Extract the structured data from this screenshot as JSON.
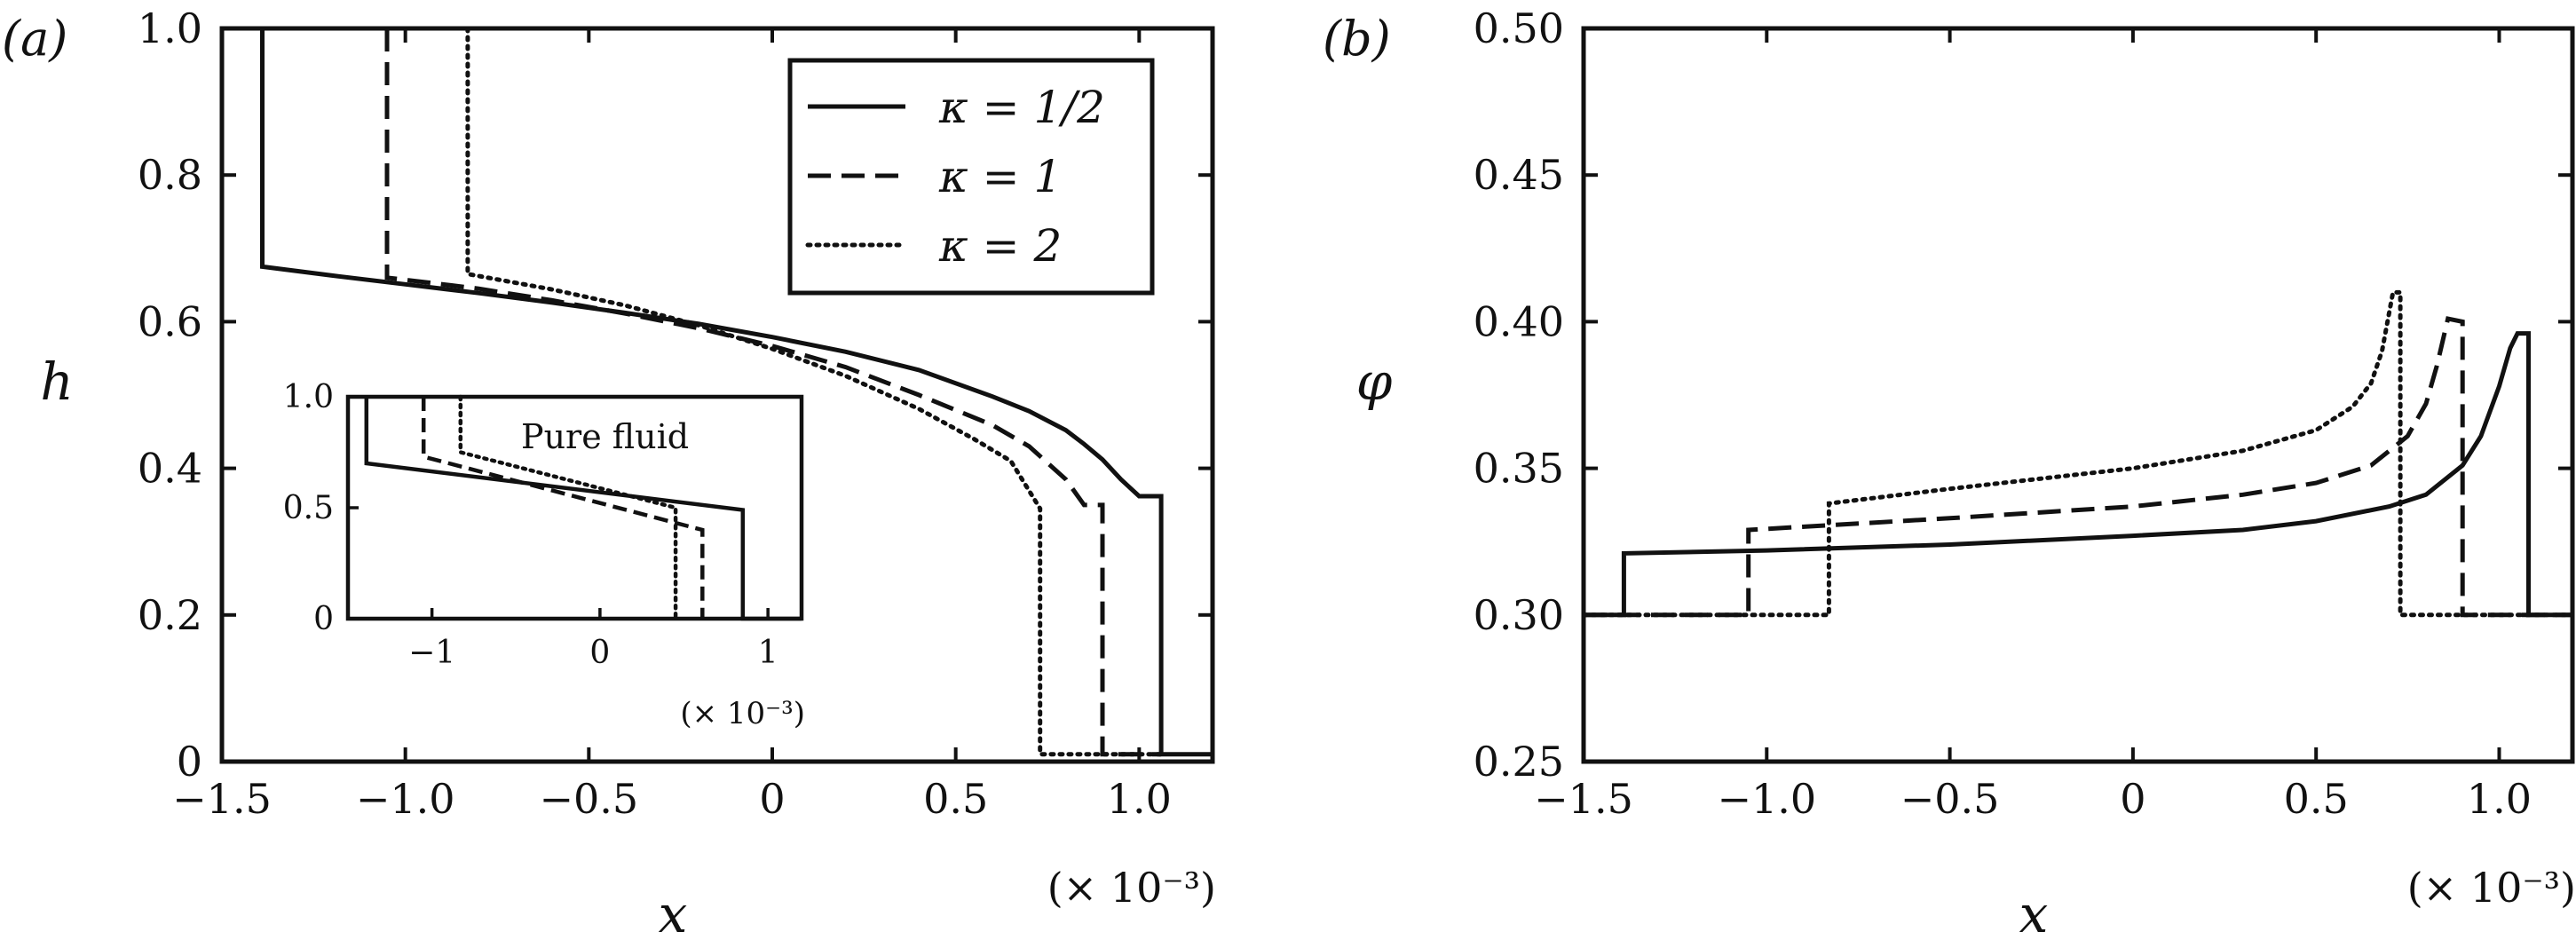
{
  "chart_data": [
    {
      "type": "line",
      "panel_label": "(a)",
      "xlabel": "x",
      "ylabel": "h",
      "x_multiplier": "(× 10⁻³)",
      "xlim": [
        -1.5,
        1.2
      ],
      "ylim": [
        0,
        1.0
      ],
      "x_ticks": [
        "−1.5",
        "−1.0",
        "−0.5",
        "0",
        "0.5",
        "1.0"
      ],
      "x_tick_values": [
        -1.5,
        -1.0,
        -0.5,
        0,
        0.5,
        1.0
      ],
      "y_ticks": [
        "0",
        "0.2",
        "0.4",
        "0.6",
        "0.8",
        "1.0"
      ],
      "y_tick_values": [
        0,
        0.2,
        0.4,
        0.6,
        0.8,
        1.0
      ],
      "legend": {
        "placement": "top-right",
        "entries": [
          "κ = 1/2",
          "κ = 1",
          "κ = 2"
        ]
      },
      "series": [
        {
          "name": "κ = 1/2",
          "style": "solid",
          "x": [
            -1.39,
            -1.39,
            -1.2,
            -1.0,
            -0.8,
            -0.6,
            -0.4,
            -0.2,
            0.0,
            0.2,
            0.4,
            0.6,
            0.7,
            0.8,
            0.85,
            0.9,
            0.95,
            1.0,
            1.06,
            1.06,
            1.2
          ],
          "y": [
            1.0,
            0.675,
            0.663,
            0.651,
            0.639,
            0.626,
            0.612,
            0.597,
            0.579,
            0.559,
            0.534,
            0.498,
            0.478,
            0.452,
            0.433,
            0.412,
            0.385,
            0.362,
            0.362,
            0.01,
            0.01
          ]
        },
        {
          "name": "κ = 1",
          "style": "dashed",
          "x": [
            -1.05,
            -1.05,
            -0.8,
            -0.6,
            -0.4,
            -0.2,
            0.0,
            0.2,
            0.4,
            0.6,
            0.7,
            0.8,
            0.85,
            0.9,
            0.9,
            1.06
          ],
          "y": [
            1.0,
            0.66,
            0.645,
            0.629,
            0.611,
            0.591,
            0.567,
            0.538,
            0.5,
            0.459,
            0.43,
            0.385,
            0.35,
            0.35,
            0.01,
            0.01
          ]
        },
        {
          "name": "κ = 2",
          "style": "dotted",
          "x": [
            -0.83,
            -0.83,
            -0.6,
            -0.4,
            -0.2,
            0.0,
            0.2,
            0.4,
            0.55,
            0.65,
            0.73,
            0.73,
            1.06
          ],
          "y": [
            1.0,
            0.665,
            0.644,
            0.622,
            0.595,
            0.563,
            0.526,
            0.481,
            0.44,
            0.41,
            0.345,
            0.01,
            0.01
          ]
        }
      ],
      "inset": {
        "annotation": "Pure fluid",
        "x_multiplier": "(× 10⁻³)",
        "xlim": [
          -1.5,
          1.2
        ],
        "ylim": [
          0,
          1.0
        ],
        "x_ticks": [
          "−1",
          "0",
          "1"
        ],
        "x_tick_values": [
          -1,
          0,
          1
        ],
        "y_ticks": [
          "0",
          "0.5",
          "1.0"
        ],
        "y_tick_values": [
          0,
          0.5,
          1.0
        ],
        "series": [
          {
            "name": "κ = 1/2",
            "style": "solid",
            "x": [
              -1.39,
              -1.39,
              0.85,
              0.85,
              1.2
            ],
            "y": [
              1.0,
              0.7,
              0.49,
              0.0,
              0.0
            ]
          },
          {
            "name": "κ = 1",
            "style": "dashed",
            "x": [
              -1.05,
              -1.05,
              0.61,
              0.61
            ],
            "y": [
              1.0,
              0.73,
              0.4,
              0.0
            ]
          },
          {
            "name": "κ = 2",
            "style": "dotted",
            "x": [
              -0.83,
              -0.83,
              0.45,
              0.45
            ],
            "y": [
              1.0,
              0.75,
              0.5,
              0.0
            ]
          }
        ]
      }
    },
    {
      "type": "line",
      "panel_label": "(b)",
      "xlabel": "x",
      "ylabel": "φ",
      "x_multiplier": "(× 10⁻³)",
      "xlim": [
        -1.5,
        1.2
      ],
      "ylim": [
        0.25,
        0.5
      ],
      "x_ticks": [
        "−1.5",
        "−1.0",
        "−0.5",
        "0",
        "0.5",
        "1.0"
      ],
      "x_tick_values": [
        -1.5,
        -1.0,
        -0.5,
        0,
        0.5,
        1.0
      ],
      "y_ticks": [
        "0.25",
        "0.30",
        "0.35",
        "0.40",
        "0.45",
        "0.50"
      ],
      "y_tick_values": [
        0.25,
        0.3,
        0.35,
        0.4,
        0.45,
        0.5
      ],
      "series": [
        {
          "name": "κ = 1/2",
          "style": "solid",
          "x": [
            -1.5,
            -1.39,
            -1.39,
            -1.0,
            -0.5,
            0.0,
            0.3,
            0.5,
            0.7,
            0.8,
            0.9,
            0.95,
            1.0,
            1.03,
            1.05,
            1.08,
            1.08,
            1.2
          ],
          "y": [
            0.3,
            0.3,
            0.321,
            0.322,
            0.324,
            0.327,
            0.329,
            0.332,
            0.337,
            0.341,
            0.351,
            0.361,
            0.378,
            0.391,
            0.396,
            0.396,
            0.3,
            0.3
          ]
        },
        {
          "name": "κ = 1",
          "style": "dashed",
          "x": [
            -1.5,
            -1.05,
            -1.05,
            -0.5,
            0.0,
            0.3,
            0.5,
            0.65,
            0.75,
            0.8,
            0.83,
            0.86,
            0.9,
            0.9,
            1.2
          ],
          "y": [
            0.3,
            0.3,
            0.329,
            0.333,
            0.337,
            0.341,
            0.345,
            0.351,
            0.361,
            0.372,
            0.385,
            0.401,
            0.4,
            0.3,
            0.3
          ]
        },
        {
          "name": "κ = 2",
          "style": "dotted",
          "x": [
            -1.5,
            -0.83,
            -0.83,
            -0.5,
            0.0,
            0.3,
            0.5,
            0.6,
            0.65,
            0.68,
            0.71,
            0.73,
            0.73,
            1.2
          ],
          "y": [
            0.3,
            0.3,
            0.338,
            0.343,
            0.35,
            0.356,
            0.363,
            0.371,
            0.379,
            0.39,
            0.41,
            0.41,
            0.3,
            0.3
          ]
        }
      ]
    }
  ]
}
